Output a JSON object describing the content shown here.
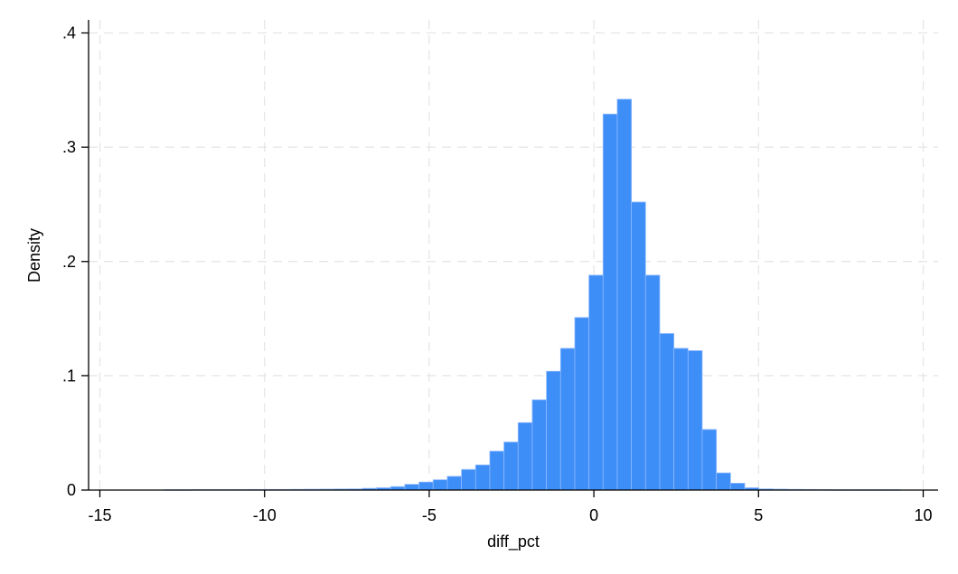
{
  "chart_data": {
    "type": "bar",
    "subtype": "histogram",
    "xlabel": "diff_pct",
    "ylabel": "Density",
    "xlim": [
      -15.5,
      10.5
    ],
    "ylim": [
      0,
      0.41
    ],
    "x_ticks": [
      -15,
      -10,
      -5,
      0,
      5,
      10
    ],
    "x_tick_labels": [
      "-15",
      "-10",
      "-5",
      "0",
      "5",
      "10"
    ],
    "y_ticks": [
      0,
      0.1,
      0.2,
      0.3,
      0.4
    ],
    "y_tick_labels": [
      "0",
      ".1",
      ".2",
      ".3",
      ".4"
    ],
    "grid": true,
    "bar_color": "#3d8ef7",
    "bin_width": 0.43,
    "bins": [
      {
        "x0": -13.05,
        "value": 0.0003
      },
      {
        "x0": -12.62,
        "value": 0.0003
      },
      {
        "x0": -12.19,
        "value": 0.0004
      },
      {
        "x0": -11.76,
        "value": 0.0004
      },
      {
        "x0": -11.33,
        "value": 0.0004
      },
      {
        "x0": -10.9,
        "value": 0.0004
      },
      {
        "x0": -10.47,
        "value": 0.0005
      },
      {
        "x0": -10.04,
        "value": 0.0005
      },
      {
        "x0": -9.61,
        "value": 0.0005
      },
      {
        "x0": -9.18,
        "value": 0.0006
      },
      {
        "x0": -8.75,
        "value": 0.0007
      },
      {
        "x0": -8.32,
        "value": 0.0008
      },
      {
        "x0": -7.89,
        "value": 0.0009
      },
      {
        "x0": -7.46,
        "value": 0.001
      },
      {
        "x0": -7.03,
        "value": 0.0015
      },
      {
        "x0": -6.6,
        "value": 0.002
      },
      {
        "x0": -6.17,
        "value": 0.003
      },
      {
        "x0": -5.74,
        "value": 0.005
      },
      {
        "x0": -5.31,
        "value": 0.007
      },
      {
        "x0": -4.88,
        "value": 0.009
      },
      {
        "x0": -4.45,
        "value": 0.012
      },
      {
        "x0": -4.02,
        "value": 0.018
      },
      {
        "x0": -3.59,
        "value": 0.022
      },
      {
        "x0": -3.16,
        "value": 0.034
      },
      {
        "x0": -2.73,
        "value": 0.042
      },
      {
        "x0": -2.3,
        "value": 0.059
      },
      {
        "x0": -1.87,
        "value": 0.079
      },
      {
        "x0": -1.44,
        "value": 0.104
      },
      {
        "x0": -1.01,
        "value": 0.124
      },
      {
        "x0": -0.58,
        "value": 0.151
      },
      {
        "x0": -0.15,
        "value": 0.188
      },
      {
        "x0": 0.28,
        "value": 0.329
      },
      {
        "x0": 0.71,
        "value": 0.342
      },
      {
        "x0": 1.14,
        "value": 0.252
      },
      {
        "x0": 1.57,
        "value": 0.188
      },
      {
        "x0": 2.0,
        "value": 0.137
      },
      {
        "x0": 2.43,
        "value": 0.124
      },
      {
        "x0": 2.86,
        "value": 0.122
      },
      {
        "x0": 3.29,
        "value": 0.053
      },
      {
        "x0": 3.72,
        "value": 0.015
      },
      {
        "x0": 4.15,
        "value": 0.006
      },
      {
        "x0": 4.58,
        "value": 0.002
      },
      {
        "x0": 5.01,
        "value": 0.001
      },
      {
        "x0": 5.44,
        "value": 0.0008
      },
      {
        "x0": 5.87,
        "value": 0.0006
      },
      {
        "x0": 6.3,
        "value": 0.0005
      },
      {
        "x0": 6.73,
        "value": 0.0004
      },
      {
        "x0": 7.16,
        "value": 0.0003
      },
      {
        "x0": 7.59,
        "value": 0.0003
      },
      {
        "x0": 8.02,
        "value": 0.0003
      },
      {
        "x0": 8.45,
        "value": 0.0003
      },
      {
        "x0": 8.88,
        "value": 0.0003
      }
    ]
  }
}
